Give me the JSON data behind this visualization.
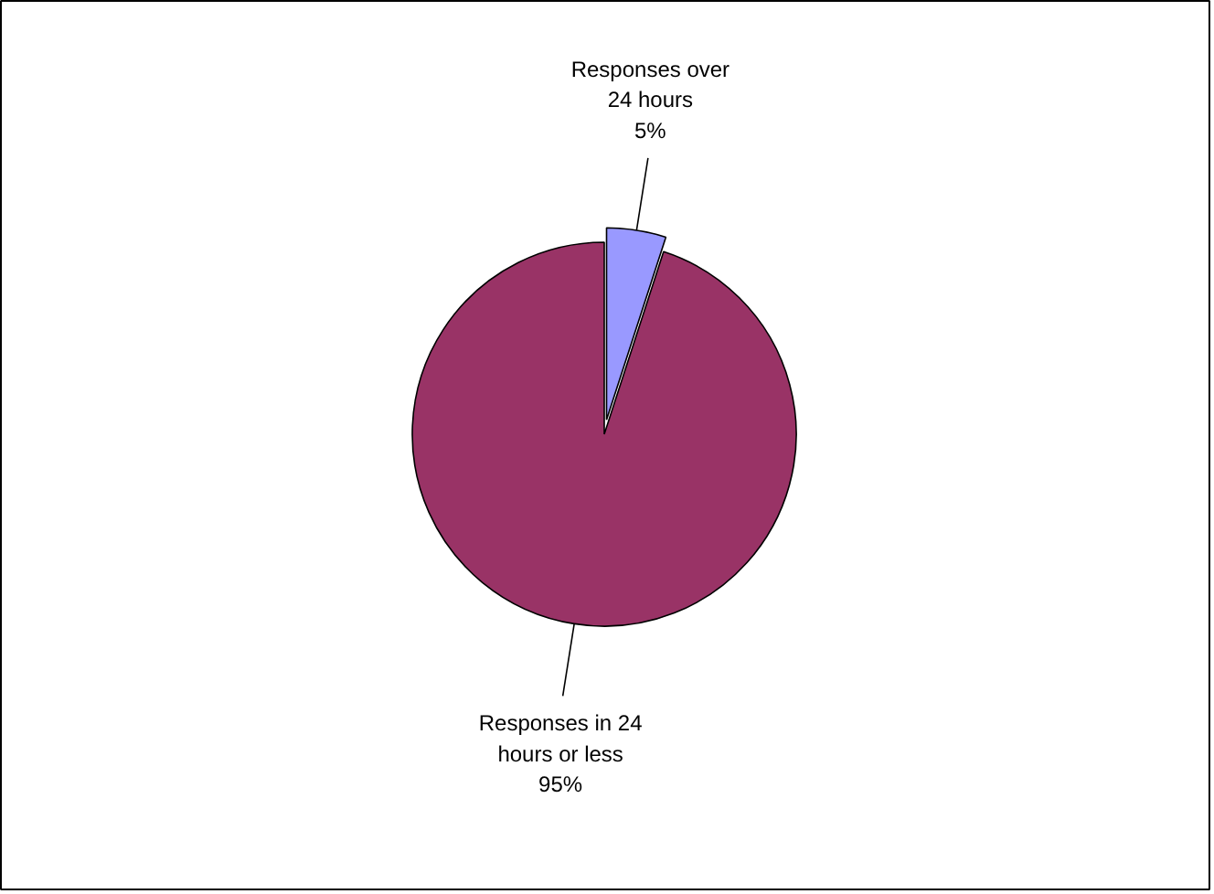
{
  "chart_data": {
    "type": "pie",
    "categories": [
      "Responses over 24 hours",
      "Responses in 24 hours or less"
    ],
    "values": [
      5,
      95
    ],
    "colors": [
      "#9999ff",
      "#993366"
    ],
    "value_labels": [
      "5%",
      "95%"
    ]
  }
}
